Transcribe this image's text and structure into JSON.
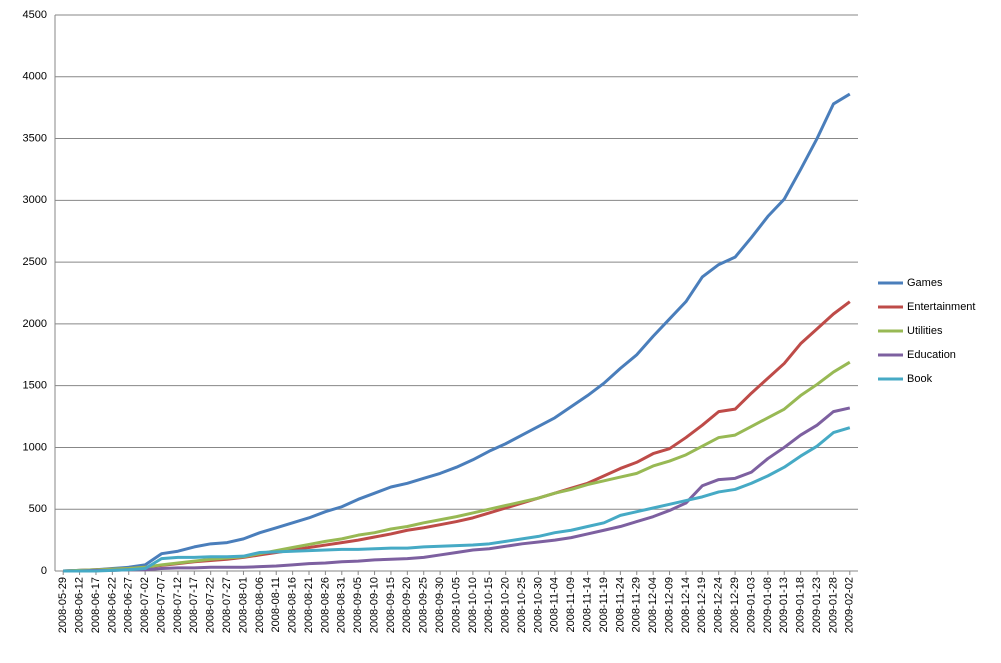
{
  "chart_data": {
    "type": "line",
    "categories": [
      "2008-05-29",
      "2008-06-12",
      "2008-06-17",
      "2008-06-22",
      "2008-06-27",
      "2008-07-02",
      "2008-07-07",
      "2008-07-12",
      "2008-07-17",
      "2008-07-22",
      "2008-07-27",
      "2008-08-01",
      "2008-08-06",
      "2008-08-11",
      "2008-08-16",
      "2008-08-21",
      "2008-08-26",
      "2008-08-31",
      "2008-09-05",
      "2008-09-10",
      "2008-09-15",
      "2008-09-20",
      "2008-09-25",
      "2008-09-30",
      "2008-10-05",
      "2008-10-10",
      "2008-10-15",
      "2008-10-20",
      "2008-10-25",
      "2008-10-30",
      "2008-11-04",
      "2008-11-09",
      "2008-11-14",
      "2008-11-19",
      "2008-11-24",
      "2008-11-29",
      "2008-12-04",
      "2008-12-09",
      "2008-12-14",
      "2008-12-19",
      "2008-12-24",
      "2008-12-29",
      "2009-01-03",
      "2009-01-08",
      "2009-01-13",
      "2009-01-18",
      "2009-01-23",
      "2009-01-28",
      "2009-02-02"
    ],
    "series": [
      {
        "name": "Games",
        "color": "#4a7ebb",
        "values": [
          0,
          5,
          10,
          20,
          30,
          50,
          140,
          160,
          195,
          220,
          230,
          260,
          310,
          350,
          390,
          430,
          480,
          520,
          580,
          630,
          680,
          710,
          750,
          790,
          840,
          900,
          970,
          1030,
          1100,
          1170,
          1240,
          1330,
          1420,
          1520,
          1640,
          1750,
          1900,
          2040,
          2180,
          2380,
          2480,
          2540,
          2700,
          2870,
          3010,
          3250,
          3500,
          3780,
          3860
        ]
      },
      {
        "name": "Entertainment",
        "color": "#be4b48",
        "values": [
          0,
          5,
          10,
          15,
          20,
          30,
          45,
          60,
          75,
          85,
          95,
          110,
          130,
          150,
          170,
          190,
          210,
          230,
          250,
          275,
          300,
          330,
          350,
          375,
          400,
          430,
          470,
          510,
          550,
          590,
          630,
          670,
          710,
          770,
          830,
          880,
          950,
          990,
          1080,
          1180,
          1290,
          1310,
          1440,
          1560,
          1680,
          1840,
          1960,
          2080,
          2180
        ]
      },
      {
        "name": "Utilities",
        "color": "#98b954",
        "values": [
          0,
          5,
          10,
          15,
          20,
          30,
          50,
          65,
          80,
          95,
          105,
          115,
          140,
          165,
          190,
          215,
          240,
          260,
          290,
          310,
          340,
          360,
          390,
          415,
          440,
          470,
          500,
          530,
          560,
          590,
          630,
          660,
          700,
          730,
          760,
          790,
          850,
          890,
          940,
          1010,
          1080,
          1100,
          1170,
          1240,
          1310,
          1420,
          1510,
          1610,
          1690
        ]
      },
      {
        "name": "Education",
        "color": "#7d60a0",
        "values": [
          0,
          0,
          5,
          5,
          10,
          10,
          20,
          25,
          25,
          30,
          30,
          30,
          35,
          40,
          50,
          60,
          65,
          75,
          80,
          90,
          95,
          100,
          110,
          130,
          150,
          170,
          180,
          200,
          220,
          235,
          250,
          270,
          300,
          330,
          360,
          400,
          440,
          490,
          550,
          690,
          740,
          750,
          800,
          910,
          1000,
          1100,
          1180,
          1290,
          1320
        ]
      },
      {
        "name": "Book",
        "color": "#46aac5",
        "values": [
          0,
          0,
          0,
          5,
          10,
          20,
          100,
          110,
          110,
          115,
          115,
          120,
          150,
          155,
          160,
          165,
          170,
          175,
          175,
          180,
          185,
          185,
          195,
          200,
          205,
          210,
          220,
          240,
          260,
          280,
          310,
          330,
          360,
          390,
          450,
          480,
          510,
          540,
          570,
          600,
          640,
          660,
          710,
          770,
          840,
          930,
          1010,
          1120,
          1160
        ]
      }
    ],
    "ylim": [
      0,
      4500
    ],
    "yticks": [
      0,
      500,
      1000,
      1500,
      2000,
      2500,
      3000,
      3500,
      4000,
      4500
    ],
    "grid": true,
    "legend": "right"
  }
}
